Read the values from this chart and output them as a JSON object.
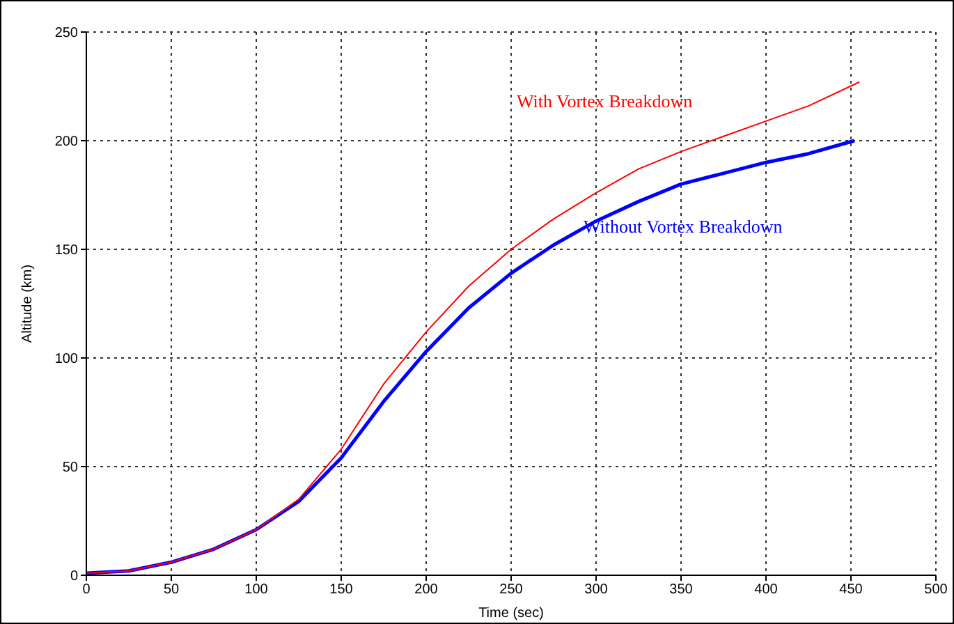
{
  "chart_data": {
    "type": "line",
    "xlabel": "Time (sec)",
    "ylabel": "Altitude (km)",
    "xlim": [
      0,
      500
    ],
    "xticks": [
      0,
      50,
      100,
      150,
      200,
      250,
      300,
      350,
      400,
      450,
      500
    ],
    "ylim": [
      0,
      250
    ],
    "yticks": [
      0,
      50,
      100,
      150,
      200,
      250
    ],
    "grid": true,
    "line_style": "solid",
    "marker": "none",
    "series": [
      {
        "name": "With Vortex Breakdown",
        "color": "#ff0000",
        "x": [
          0,
          25,
          50,
          75,
          100,
          125,
          150,
          175,
          200,
          225,
          250,
          275,
          300,
          325,
          350,
          375,
          400,
          425,
          455
        ],
        "values": [
          1,
          2,
          6,
          12,
          21,
          35,
          58,
          88,
          112,
          133,
          150,
          164,
          176,
          187,
          195,
          202,
          209,
          216,
          227
        ]
      },
      {
        "name": "Without Vortex Breakdown",
        "color": "#0000ff",
        "x": [
          0,
          25,
          50,
          75,
          100,
          125,
          150,
          175,
          200,
          225,
          250,
          275,
          300,
          325,
          350,
          375,
          400,
          425,
          452
        ],
        "values": [
          1,
          2,
          6,
          12,
          21,
          34,
          54,
          80,
          103,
          123,
          139,
          152,
          163,
          172,
          180,
          185,
          190,
          194,
          200
        ]
      }
    ]
  }
}
